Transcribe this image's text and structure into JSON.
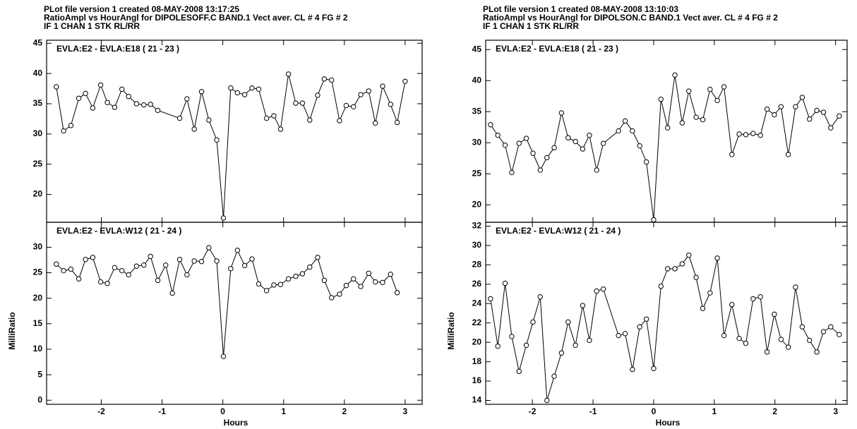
{
  "chart_data": [
    {
      "type": "line",
      "title": [
        "PLot file version 1  created 08-MAY-2008 13:17:25",
        "RatioAmpl vs HourAngl  for  DIPOLESOFF.C BAND.1  Vect aver.  CL # 4  FG # 2",
        "IF 1   CHAN 1   STK RL/RR"
      ],
      "subtitle": "EVLA:E2 - EVLA:E18 ( 21 - 23 )",
      "x": [
        -2.74,
        -2.62,
        -2.5,
        -2.37,
        -2.26,
        -2.14,
        -2.01,
        -1.9,
        -1.78,
        -1.66,
        -1.55,
        -1.42,
        -1.3,
        -1.19,
        -1.07,
        -0.71,
        -0.59,
        -0.47,
        -0.35,
        -0.23,
        -0.1,
        0.01,
        0.13,
        0.24,
        0.36,
        0.48,
        0.59,
        0.72,
        0.84,
        0.95,
        1.08,
        1.2,
        1.31,
        1.43,
        1.56,
        1.67,
        1.79,
        1.92,
        2.03,
        2.15,
        2.27,
        2.4,
        2.51,
        2.63,
        2.76,
        2.87,
        3.0
      ],
      "values": [
        37.8,
        30.5,
        31.4,
        35.9,
        36.7,
        34.3,
        38.1,
        35.2,
        34.4,
        37.4,
        36.2,
        35.0,
        34.8,
        34.9,
        33.9,
        32.6,
        35.8,
        30.8,
        37.0,
        32.3,
        29.0,
        16.1,
        37.6,
        36.8,
        36.5,
        37.6,
        37.4,
        32.6,
        33.0,
        30.8,
        39.9,
        35.1,
        35.1,
        32.3,
        36.4,
        39.1,
        38.9,
        32.2,
        34.7,
        34.5,
        36.5,
        37.1,
        31.8,
        37.9,
        34.9,
        31.9,
        38.7
      ],
      "color": "#000000",
      "xlim": [
        -2.9,
        3.28
      ],
      "xticks": [
        -2,
        -1,
        0,
        1,
        2,
        3
      ],
      "ylim": [
        15.4,
        45.5
      ],
      "yticks": [
        20,
        25,
        30,
        35,
        40,
        45
      ]
    },
    {
      "type": "line",
      "subtitle": "EVLA:E2 - EVLA:W12 ( 21 - 24 )",
      "ylabel": "MilliRatio",
      "xlabel": "Hours",
      "x": [
        -2.74,
        -2.62,
        -2.5,
        -2.37,
        -2.26,
        -2.14,
        -2.01,
        -1.9,
        -1.78,
        -1.66,
        -1.55,
        -1.42,
        -1.3,
        -1.19,
        -1.07,
        -0.94,
        -0.83,
        -0.71,
        -0.59,
        -0.47,
        -0.35,
        -0.23,
        -0.1,
        0.01,
        0.13,
        0.24,
        0.36,
        0.48,
        0.59,
        0.72,
        0.84,
        0.95,
        1.08,
        1.2,
        1.31,
        1.43,
        1.56,
        1.67,
        1.79,
        1.92,
        2.03,
        2.15,
        2.27,
        2.4,
        2.51,
        2.63,
        2.76,
        2.87
      ],
      "values": [
        26.7,
        25.4,
        25.7,
        23.8,
        27.6,
        28.0,
        23.2,
        22.9,
        26.0,
        25.4,
        24.6,
        26.3,
        26.5,
        28.2,
        23.5,
        26.5,
        21.0,
        27.6,
        24.6,
        27.3,
        27.2,
        29.9,
        27.3,
        8.6,
        25.8,
        29.4,
        26.4,
        27.7,
        22.8,
        21.5,
        22.6,
        22.7,
        23.8,
        24.3,
        24.8,
        26.1,
        28.0,
        23.5,
        20.1,
        20.8,
        22.5,
        23.8,
        22.3,
        24.9,
        23.2,
        23.1,
        24.7,
        21.1
      ],
      "color": "#000000",
      "xlim": [
        -2.9,
        3.28
      ],
      "xticks": [
        -2,
        -1,
        0,
        1,
        2,
        3
      ],
      "ylim": [
        -0.8,
        34.9
      ],
      "yticks": [
        0,
        5,
        10,
        15,
        20,
        25,
        30
      ]
    },
    {
      "type": "line",
      "title": [
        "PLot file version 1  created 08-MAY-2008 13:10:03",
        "RatioAmpl vs HourAngl  for  DIPOLSON.C BAND.1  Vect aver.  CL # 4  FG # 2",
        "IF 1   CHAN 1   STK RL/RR"
      ],
      "subtitle": "EVLA:E2 - EVLA:E18 ( 21 - 23 )",
      "x": [
        -2.69,
        -2.57,
        -2.45,
        -2.34,
        -2.22,
        -2.1,
        -1.99,
        -1.87,
        -1.76,
        -1.64,
        -1.52,
        -1.41,
        -1.29,
        -1.17,
        -1.06,
        -0.94,
        -0.83,
        -0.58,
        -0.47,
        -0.35,
        -0.23,
        -0.12,
        0,
        0.12,
        0.23,
        0.35,
        0.47,
        0.58,
        0.7,
        0.81,
        0.93,
        1.05,
        1.16,
        1.29,
        1.41,
        1.52,
        1.64,
        1.76,
        1.87,
        1.99,
        2.1,
        2.22,
        2.34,
        2.45,
        2.57,
        2.69,
        2.8,
        2.92,
        3.06
      ],
      "values": [
        32.9,
        31.2,
        29.6,
        25.2,
        29.9,
        30.7,
        28.3,
        25.6,
        27.6,
        29.2,
        34.8,
        30.8,
        30.2,
        29.0,
        31.2,
        25.6,
        29.9,
        31.9,
        33.5,
        31.9,
        29.5,
        26.9,
        17.6,
        37.0,
        32.4,
        40.9,
        33.2,
        38.3,
        34.1,
        33.7,
        38.6,
        36.8,
        39.0,
        28.1,
        31.4,
        31.3,
        31.5,
        31.2,
        35.4,
        34.5,
        35.8,
        28.1,
        35.8,
        37.3,
        33.8,
        35.2,
        34.9,
        32.4,
        34.3
      ],
      "color": "#000000",
      "xlim": [
        -2.77,
        3.19
      ],
      "xticks": [
        -2,
        -1,
        0,
        1,
        2,
        3
      ],
      "ylim": [
        17.2,
        46.5
      ],
      "yticks": [
        20,
        25,
        30,
        35,
        40,
        45
      ]
    },
    {
      "type": "line",
      "subtitle": "EVLA:E2 - EVLA:W12 ( 21 - 24 )",
      "ylabel": "MilliRatio",
      "xlabel": "Hours",
      "x": [
        -2.69,
        -2.57,
        -2.45,
        -2.34,
        -2.22,
        -2.1,
        -1.99,
        -1.87,
        -1.76,
        -1.64,
        -1.52,
        -1.41,
        -1.29,
        -1.17,
        -1.06,
        -0.94,
        -0.83,
        -0.58,
        -0.47,
        -0.35,
        -0.23,
        -0.12,
        0,
        0.12,
        0.23,
        0.35,
        0.47,
        0.58,
        0.7,
        0.81,
        0.93,
        1.05,
        1.16,
        1.29,
        1.41,
        1.52,
        1.64,
        1.76,
        1.87,
        1.99,
        2.1,
        2.22,
        2.34,
        2.45,
        2.57,
        2.69,
        2.8,
        2.92,
        3.06
      ],
      "values": [
        24.5,
        19.6,
        26.1,
        20.6,
        17.0,
        19.7,
        22.1,
        24.7,
        14.0,
        16.5,
        18.9,
        22.1,
        19.7,
        23.8,
        20.2,
        25.3,
        25.5,
        20.7,
        20.9,
        17.2,
        21.6,
        22.4,
        17.3,
        25.8,
        27.6,
        27.6,
        28.1,
        29.0,
        26.7,
        23.5,
        25.1,
        28.7,
        20.7,
        23.9,
        20.4,
        19.9,
        24.5,
        24.7,
        19.0,
        22.9,
        20.3,
        19.5,
        25.7,
        21.6,
        20.2,
        19.0,
        21.1,
        21.6,
        20.8
      ],
      "color": "#000000",
      "xlim": [
        -2.77,
        3.19
      ],
      "xticks": [
        -2,
        -1,
        0,
        1,
        2,
        3
      ],
      "ylim": [
        13.6,
        32.4
      ],
      "yticks": [
        14,
        16,
        18,
        20,
        22,
        24,
        26,
        28,
        30,
        32
      ]
    }
  ]
}
